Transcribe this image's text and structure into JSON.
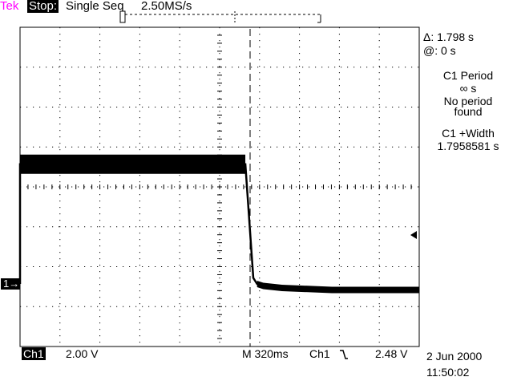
{
  "header": {
    "brand": "Tek",
    "run_state": "Stop:",
    "acquisition": "Single Seq",
    "sample_rate": "2.50MS/s"
  },
  "cursor_readouts": {
    "delta": "Δ: 1.798 s",
    "at": "@: 0 s"
  },
  "measurements": {
    "c1_period_label": "C1 Period",
    "c1_period_value": "∞ s",
    "c1_period_note_1": "No period",
    "c1_period_note_2": "found",
    "c1_width_label": "C1 +Width",
    "c1_width_value": "1.7958581 s"
  },
  "channel_marker": "1→",
  "footer": {
    "channel": "Ch1",
    "volts_per_div": "2.00 V",
    "timebase": "M 320ms",
    "trigger_source": "Ch1",
    "trigger_slope_icon": "falling-edge-icon",
    "trigger_level": "2.48 V",
    "date": "2 Jun 2000",
    "time": "11:50:02"
  },
  "colors": {
    "brand": "#ff00ff",
    "trace": "#000000",
    "background": "#ffffff"
  },
  "chart_data": {
    "type": "line",
    "x_units": "ms",
    "y_units": "V",
    "time_per_div_ms": 320,
    "volts_per_div": 2.0,
    "grid": true,
    "series": [
      {
        "x": [
          0,
          0.1,
          1806,
          1870,
          1900,
          1950,
          2100,
          2500,
          3200
        ],
        "y": [
          0.0,
          6.0,
          6.0,
          0.3,
          0.0,
          -0.1,
          -0.2,
          -0.3,
          -0.3
        ]
      }
    ]
  }
}
